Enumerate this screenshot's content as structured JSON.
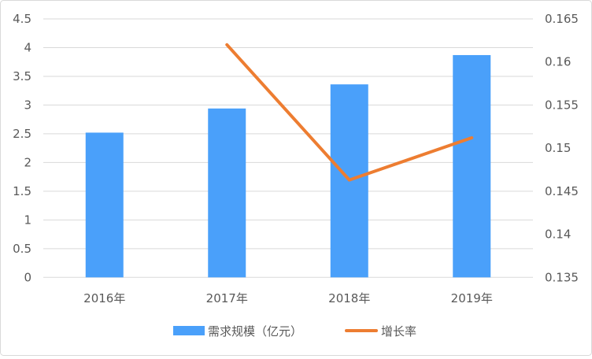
{
  "chart_data": {
    "type": "bar+line",
    "categories": [
      "2016年",
      "2017年",
      "2018年",
      "2019年"
    ],
    "series": [
      {
        "name": "需求规模（亿元）",
        "type": "bar",
        "axis": "left",
        "color": "#4aa0fa",
        "values": [
          2.52,
          2.94,
          3.36,
          3.87
        ]
      },
      {
        "name": "增长率",
        "type": "line",
        "axis": "right",
        "color": "#ed7d31",
        "values": [
          null,
          0.162,
          0.1463,
          0.1512
        ]
      }
    ],
    "y_left": {
      "range": [
        0,
        4.5
      ],
      "ticks": [
        "0",
        "0.5",
        "1",
        "1.5",
        "2",
        "2.5",
        "3",
        "3.5",
        "4",
        "4.5"
      ]
    },
    "y_right": {
      "range": [
        0.135,
        0.165
      ],
      "ticks": [
        "0.135",
        "0.14",
        "0.145",
        "0.15",
        "0.155",
        "0.16",
        "0.165"
      ]
    },
    "grid": true,
    "legend": "bottom",
    "title": "",
    "xlabel": "",
    "ylabel": ""
  }
}
